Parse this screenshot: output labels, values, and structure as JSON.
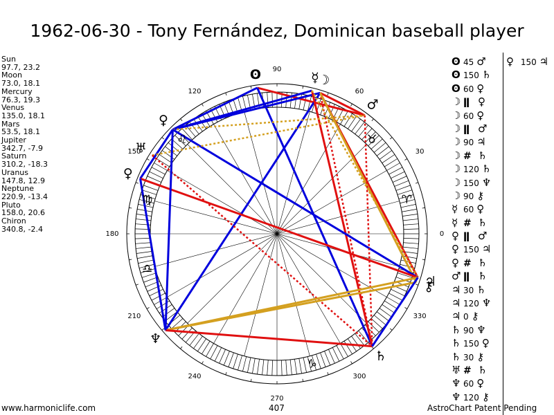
{
  "title": "1962-06-30 - Tony Fernández, Dominican baseball player",
  "planet_list": [
    "Sun",
    "97.7, 23.2",
    "Moon",
    "73.0, 18.1",
    "Mercury",
    "76.3, 19.3",
    "Venus",
    "135.0, 18.1",
    "Mars",
    "53.5, 18.1",
    "Jupiter",
    "342.7, -7.9",
    "Saturn",
    "310.2, -18.3",
    "Uranus",
    "147.8, 12.9",
    "Neptune",
    "220.9, -13.4",
    "Pluto",
    "158.0, 20.6",
    "Chiron",
    "340.8, -2.4"
  ],
  "wheel": {
    "degree_labels": [
      "0",
      "30",
      "60",
      "90",
      "120",
      "150",
      "180",
      "210",
      "240",
      "270",
      "300",
      "330"
    ],
    "label_angles": [
      0,
      30,
      60,
      90,
      120,
      150,
      180,
      210,
      240,
      270,
      300,
      330
    ],
    "planets": [
      {
        "name": "Sun",
        "glyph": "ʘ",
        "lon": 97.7
      },
      {
        "name": "Moon",
        "glyph": "☽",
        "lon": 73.0
      },
      {
        "name": "Mercury",
        "glyph": "☿",
        "lon": 76.3
      },
      {
        "name": "Venus",
        "glyph": "♀",
        "lon": 135.0
      },
      {
        "name": "Mars",
        "glyph": "♂",
        "lon": 53.5
      },
      {
        "name": "Jupiter",
        "glyph": "♃",
        "lon": 342.7
      },
      {
        "name": "Saturn",
        "glyph": "♄",
        "lon": 310.2
      },
      {
        "name": "Uranus",
        "glyph": "♅",
        "lon": 147.8
      },
      {
        "name": "Neptune",
        "glyph": "♆",
        "lon": 220.9
      },
      {
        "name": "Pluto",
        "glyph": "♀",
        "lon": 158.0
      },
      {
        "name": "Chiron",
        "glyph": "⚷",
        "lon": 340.8
      }
    ],
    "signs": [
      {
        "name": "Aries",
        "glyph": "♈",
        "lon": 15
      },
      {
        "name": "Taurus",
        "glyph": "♉",
        "lon": 45
      },
      {
        "name": "Leo",
        "glyph": "♌",
        "lon": 135
      },
      {
        "name": "Virgo",
        "glyph": "♍",
        "lon": 165
      },
      {
        "name": "Libra",
        "glyph": "♎",
        "lon": 195
      },
      {
        "name": "Capricorn",
        "glyph": "♑",
        "lon": 285
      }
    ],
    "aspect_lines": [
      {
        "a": "Sun",
        "b": "Mars",
        "color": "#e01010",
        "style": "solid"
      },
      {
        "a": "Sun",
        "b": "Saturn",
        "color": "#0000dd",
        "style": "solid"
      },
      {
        "a": "Sun",
        "b": "Venus",
        "color": "#0000dd",
        "style": "solid"
      },
      {
        "a": "Moon",
        "b": "Venus",
        "color": "#0000dd",
        "style": "solid"
      },
      {
        "a": "Moon",
        "b": "Mars",
        "color": "#e01010",
        "style": "solid"
      },
      {
        "a": "Moon",
        "b": "Jupiter",
        "color": "#e01010",
        "style": "solid"
      },
      {
        "a": "Moon",
        "b": "Saturn",
        "color": "#e01010",
        "style": "dotted"
      },
      {
        "a": "Moon",
        "b": "Neptune",
        "color": "#0000dd",
        "style": "solid"
      },
      {
        "a": "Moon",
        "b": "Chiron",
        "color": "#d4a020",
        "style": "solid"
      },
      {
        "a": "Mercury",
        "b": "Venus",
        "color": "#0000dd",
        "style": "solid"
      },
      {
        "a": "Mercury",
        "b": "Saturn",
        "color": "#e01010",
        "style": "solid"
      },
      {
        "a": "Mercury",
        "b": "Jupiter",
        "color": "#d4a020",
        "style": "dotted"
      },
      {
        "a": "Venus",
        "b": "Mars",
        "color": "#d4a020",
        "style": "dotted"
      },
      {
        "a": "Venus",
        "b": "Jupiter",
        "color": "#0000dd",
        "style": "solid"
      },
      {
        "a": "Venus",
        "b": "Pluto",
        "color": "#0000dd",
        "style": "solid"
      },
      {
        "a": "Mars",
        "b": "Saturn",
        "color": "#e01010",
        "style": "dotted"
      },
      {
        "a": "Uranus",
        "b": "Mars",
        "color": "#d4a020",
        "style": "dotted"
      },
      {
        "a": "Uranus",
        "b": "Saturn",
        "color": "#e01010",
        "style": "dotted"
      },
      {
        "a": "Pluto",
        "b": "Jupiter",
        "color": "#e01010",
        "style": "solid"
      },
      {
        "a": "Pluto",
        "b": "Neptune",
        "color": "#0000dd",
        "style": "solid"
      },
      {
        "a": "Jupiter",
        "b": "Neptune",
        "color": "#d4a020",
        "style": "solid"
      },
      {
        "a": "Chiron",
        "b": "Neptune",
        "color": "#d4a020",
        "style": "solid"
      },
      {
        "a": "Saturn",
        "b": "Neptune",
        "color": "#e01010",
        "style": "solid"
      },
      {
        "a": "Jupiter",
        "b": "Saturn",
        "color": "#0000dd",
        "style": "solid"
      },
      {
        "a": "Neptune",
        "b": "Venus",
        "color": "#0000dd",
        "style": "solid"
      }
    ]
  },
  "aspect_list": [
    {
      "p1": "ʘ",
      "sym": "45",
      "p2": "♂"
    },
    {
      "p1": "ʘ",
      "sym": "150",
      "p2": "♄"
    },
    {
      "p1": "ʘ",
      "sym": "60",
      "p2": "♀"
    },
    {
      "p1": "☽",
      "sym": "ǁ",
      "p2": "♀"
    },
    {
      "p1": "☽",
      "sym": "60",
      "p2": "♀"
    },
    {
      "p1": "☽",
      "sym": "ǁ",
      "p2": "♂"
    },
    {
      "p1": "☽",
      "sym": "90",
      "p2": "♃"
    },
    {
      "p1": "☽",
      "sym": "#",
      "p2": "♄"
    },
    {
      "p1": "☽",
      "sym": "120",
      "p2": "♄"
    },
    {
      "p1": "☽",
      "sym": "150",
      "p2": "♆"
    },
    {
      "p1": "☽",
      "sym": "90",
      "p2": "⚷"
    },
    {
      "p1": "☿",
      "sym": "60",
      "p2": "♀"
    },
    {
      "p1": "☿",
      "sym": "#",
      "p2": "♄"
    },
    {
      "p1": "♀",
      "sym": "ǁ",
      "p2": "♂"
    },
    {
      "p1": "♀",
      "sym": "150",
      "p2": "♃"
    },
    {
      "p1": "♀",
      "sym": "#",
      "p2": "♄"
    },
    {
      "p1": "♂",
      "sym": "ǁ",
      "p2": "♄"
    },
    {
      "p1": "♃",
      "sym": "30",
      "p2": "♄"
    },
    {
      "p1": "♃",
      "sym": "120",
      "p2": "♆"
    },
    {
      "p1": "♃",
      "sym": "0",
      "p2": "⚷"
    },
    {
      "p1": "♄",
      "sym": "90",
      "p2": "♆"
    },
    {
      "p1": "♄",
      "sym": "150",
      "p2": "♀"
    },
    {
      "p1": "♄",
      "sym": "30",
      "p2": "⚷"
    },
    {
      "p1": "♅",
      "sym": "#",
      "p2": "♄"
    },
    {
      "p1": "♆",
      "sym": "60",
      "p2": "♀"
    },
    {
      "p1": "♆",
      "sym": "120",
      "p2": "⚷"
    }
  ],
  "extra_aspect": {
    "p1": "♀",
    "sym": "150",
    "p2": "♃"
  },
  "footer": {
    "site": "www.harmoniclife.com",
    "count": "407",
    "patent": "AstroChart Patent Pending"
  }
}
